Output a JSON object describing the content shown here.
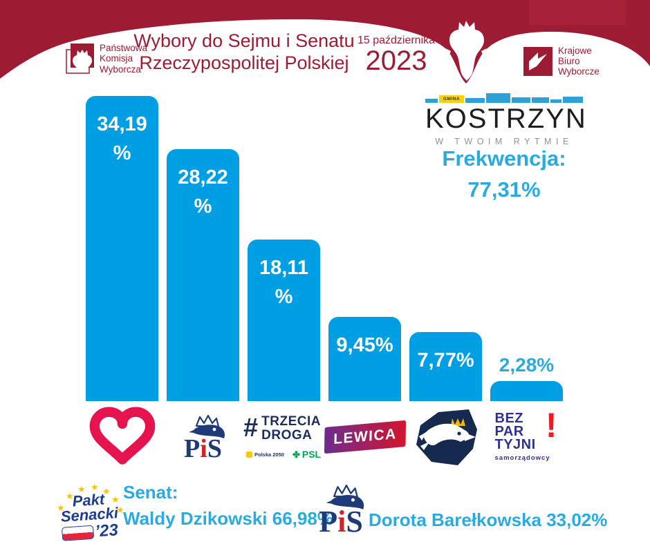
{
  "header": {
    "pkw": {
      "line1": "Państwowa",
      "line2": "Komisja",
      "line3": "Wyborcza"
    },
    "title_line1": "Wybory do Sejmu i Senatu",
    "title_line2": "Rzeczypospolitej Polskiej",
    "date_small": "15 października",
    "date_year": "2023",
    "kbw": {
      "line1": "Krajowe",
      "line2": "Biuro",
      "line3": "Wyborcze"
    }
  },
  "kostrzyn": {
    "gmina_label": "GMINA",
    "name": "KOSTRZYN",
    "tagline": "W TWOIM RYTMIE",
    "frekwencja_label": "Frekwencja:",
    "frekwencja_value": "77,31%"
  },
  "chart_data": {
    "type": "bar",
    "categories": [
      "Koalicja Obywatelska",
      "Prawo i Sprawiedliwość",
      "Trzecia Droga",
      "Lewica",
      "Konfederacja",
      "Bezpartyjni Samorządowcy"
    ],
    "values": [
      34.19,
      28.22,
      18.11,
      9.45,
      7.77,
      2.28
    ],
    "label_lines": [
      [
        "34,19",
        "%"
      ],
      [
        "28,22",
        "%"
      ],
      [
        "18,11",
        "%"
      ],
      [
        "9,45%"
      ],
      [
        "7,77%"
      ],
      [
        "2,28%"
      ]
    ],
    "unit": "%",
    "ylim": [
      0,
      34.19
    ],
    "grid": false,
    "legend": "party logos below bars",
    "bar_color": "#009ee3",
    "value_label_color_inside": "#ffffff",
    "value_label_color_outside": "#29abe2"
  },
  "parties": {
    "pis": {
      "letter_p": "P",
      "letter_i": "i",
      "letter_s": "S"
    },
    "trzecia_droga": {
      "hash": "#",
      "word1": "TRZECIA",
      "word2": "DROGA",
      "sub1": "Polska 2050",
      "sub2": "PSL",
      "psl_mark": "✤"
    },
    "lewica": {
      "label": "LEWICA"
    },
    "bezpartyjni": {
      "line1": "BEZ",
      "line2": "PAR",
      "line3": "TYJNI",
      "exclaim": "!",
      "sub": "samorządowcy"
    }
  },
  "senate": {
    "pakt_line1": "Pakt",
    "pakt_line2": "Senacki",
    "pakt_year": "’23",
    "star_glyph": "★",
    "senat_label": "Senat:",
    "candidate1": "Waldy Dzikowski 66,98%",
    "candidate2": "Dorota Barełkowska 33,02%"
  },
  "colors": {
    "maroon": "#9d1b33",
    "bar_blue": "#009ee3",
    "text_blue": "#29abe2",
    "pis_navy": "#1e3a78",
    "pis_red": "#d2232a",
    "heart_red": "#e5134e",
    "konfederacja_navy": "#152a4e",
    "crown_yellow": "#f2b705",
    "bezpartyjni_blue": "#2e3192",
    "bezpartyjni_red": "#ed1c24",
    "lewica_purple": "#6d2c90",
    "lewica_red": "#d4152c",
    "psl_green": "#00a651",
    "kostrzyn_yellow": "#f7d117",
    "pakt_navy": "#1d3d91",
    "flag_red": "#e8243d"
  }
}
